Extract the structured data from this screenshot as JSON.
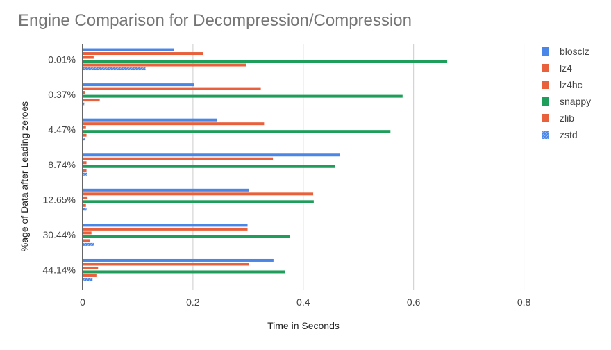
{
  "chart_data": {
    "type": "bar",
    "orientation": "horizontal",
    "title": "Engine Comparison for Decompression/Compression",
    "xlabel": "Time in Seconds",
    "ylabel": "%age of Data after Leading zeroes",
    "xlim": [
      0,
      0.9
    ],
    "xticks": [
      "0",
      "0.2",
      "0.4",
      "0.6",
      "0.8"
    ],
    "xtick_values": [
      0,
      0.2,
      0.4,
      0.6,
      0.8
    ],
    "grid": true,
    "legend_position": "right",
    "categories": [
      "0.01%",
      "0.37%",
      "4.47%",
      "8.74%",
      "12.65%",
      "30.44%",
      "44.14%"
    ],
    "series": [
      {
        "name": "blosclz",
        "color": "#4A86E8",
        "values": [
          0.165,
          0.202,
          0.243,
          0.466,
          0.302,
          0.299,
          0.346
        ]
      },
      {
        "name": "lz4",
        "color": "#E8613C",
        "values": [
          0.219,
          0.323,
          0.329,
          0.345,
          0.418,
          0.299,
          0.301
        ]
      },
      {
        "name": "lz4hc",
        "color": "#E8613C",
        "values": [
          0.02,
          0.004,
          0.006,
          0.007,
          0.009,
          0.016,
          0.028
        ]
      },
      {
        "name": "snappy",
        "color": "#1E9E5A",
        "values": [
          0.661,
          0.58,
          0.558,
          0.458,
          0.419,
          0.376,
          0.367
        ]
      },
      {
        "name": "zlib",
        "color": "#E8613C",
        "values": [
          0.296,
          0.031,
          0.007,
          0.007,
          0.006,
          0.013,
          0.025
        ]
      },
      {
        "name": "zstd",
        "color": "#4A86E8",
        "pattern": true,
        "values": [
          0.114,
          0.003,
          0.005,
          0.008,
          0.007,
          0.021,
          0.018
        ]
      }
    ]
  }
}
